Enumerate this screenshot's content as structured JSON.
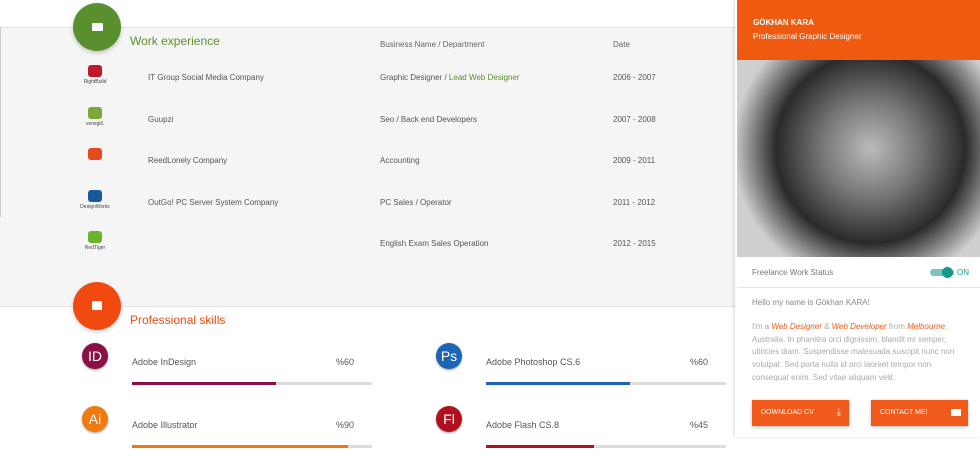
{
  "experience": {
    "title": "Work experience",
    "headers": [
      "Business Name / Department",
      "Date"
    ],
    "rows": [
      {
        "logo": "RightBuild",
        "company": "IT Group Social Media Company",
        "department": [
          "Graphic Designer / ",
          "Lead Web Designer"
        ],
        "date": "2006 - 2007"
      },
      {
        "logo": "venegill.",
        "company": "Guupzi",
        "department": [
          "Seo / Back end Developers"
        ],
        "date": "2007 - 2008"
      },
      {
        "logo": "",
        "company": "ReedLonely Company",
        "department": [
          "Accounting"
        ],
        "date": "2009 - 2011"
      },
      {
        "logo": "DesignWorks",
        "company": "OutGo! PC Server System Company",
        "department": [
          "PC Sales / Operator"
        ],
        "date": "2011 - 2012"
      },
      {
        "logo": "RedTiger",
        "company": "",
        "department": [
          "English Exam Sales Operation"
        ],
        "date": "2012 - 2015"
      }
    ]
  },
  "skills": {
    "title": "Professional skills",
    "items": [
      {
        "icon": "ID",
        "name": "Adobe InDesign",
        "level": {
          "value": 60,
          "label": "%60"
        },
        "color": "#8a1046"
      },
      {
        "icon": "Ps",
        "name": "Adobe Photoshop CS.6",
        "level": {
          "value": 60,
          "label": "%60"
        },
        "color": "#1c64b8"
      },
      {
        "icon": "Ai",
        "name": "Adobe Illustrator",
        "level": {
          "value": 90,
          "label": "%90"
        },
        "color": "#f07a10"
      },
      {
        "icon": "Fl",
        "name": "Adobe Flash CS.8",
        "level": {
          "value": 45,
          "label": "%45"
        },
        "color": "#b01020"
      }
    ]
  },
  "profile": {
    "name": "GÖKHAN KARA",
    "role": "Professional Graphic Designer",
    "status_label": "Freelance Work Status",
    "status": "ON",
    "greeting": "Hello my name is Gökhan KARA!",
    "bio": [
      "I'm a ",
      "Web Designer",
      " & ",
      "Web Developer",
      " from ",
      "Melbourne",
      ", Australia. In pharetra orci dignissim, blandit mi semper, ultricies diam. Suspendisse malesuada suscipit nunc non volutpat. Sed porta nulla id orci laoreet tempor non consequat enim. Sed vitae aliquam velit."
    ],
    "buttons": [
      "DOWNLOAD CV",
      "CONTACT ME!"
    ]
  }
}
